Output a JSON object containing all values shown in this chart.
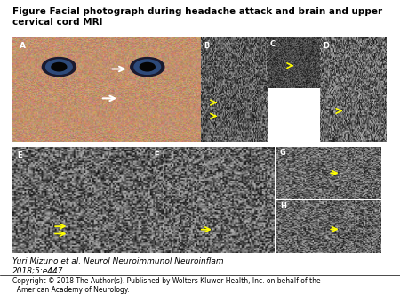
{
  "title": "Figure Facial photograph during headache attack and brain and upper cervical cord MRI",
  "citation_line1": "Yuri Mizuno et al. Neurol Neuroimmunol Neuroinflam",
  "citation_line2": "2018;5:e447",
  "copyright": "Copyright © 2018 The Author(s). Published by Wolters Kluwer Health, Inc. on behalf of the\n  American Academy of Neurology.",
  "background_color": "#ffffff",
  "panel_bg": "#1a1a1a",
  "panel_A_color": "#c8956a",
  "title_fontsize": 7.5,
  "citation_fontsize": 6.5,
  "copyright_fontsize": 5.5,
  "label_color": "#ffffff",
  "yellow_arrow": "#ffff00",
  "white_arrow": "#ffffff"
}
